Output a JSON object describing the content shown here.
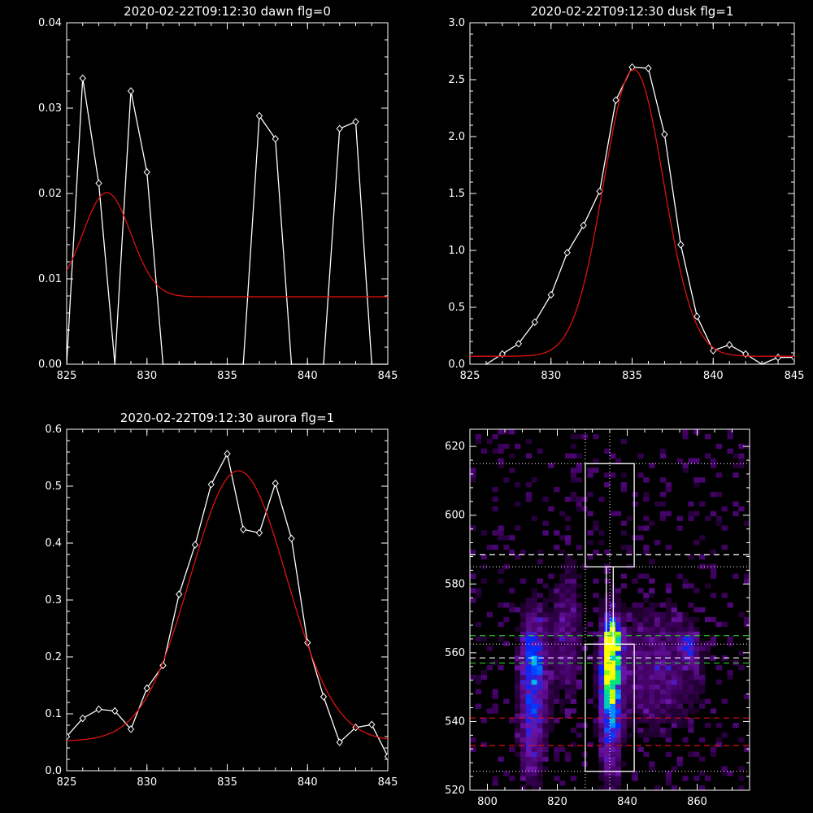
{
  "colors": {
    "background": "#000000",
    "axis": "#ffffff",
    "data": "#ffffff",
    "fit": "#dd1111"
  },
  "chart_data": [
    {
      "type": "line",
      "title": "2020-02-22T09:12:30 dawn flg=0",
      "xlim": [
        825,
        845
      ],
      "ylim": [
        0,
        0.04
      ],
      "xticks": [
        825,
        830,
        835,
        840,
        845
      ],
      "xtick_labels": [
        "825",
        "830",
        "835",
        "840",
        "845"
      ],
      "yticks": [
        0,
        0.01,
        0.02,
        0.03,
        0.04
      ],
      "ytick_labels": [
        "0.00",
        "0.01",
        "0.02",
        "0.03",
        "0.04"
      ],
      "grid": false,
      "series": [
        {
          "role": "data",
          "style": "white line with diamond markers",
          "x": [
            825,
            826,
            827,
            828,
            829,
            830,
            831,
            832,
            833,
            834,
            835,
            836,
            837,
            838,
            839,
            840,
            841,
            842,
            843,
            844,
            845
          ],
          "y": [
            0,
            0.0335,
            0.0212,
            0,
            0.032,
            0.0225,
            0,
            0,
            0,
            0,
            0,
            0,
            0.0291,
            0.0264,
            0,
            0,
            0,
            0.0276,
            0.0284,
            0,
            0
          ]
        },
        {
          "role": "fit",
          "style": "red curve",
          "model": "gaussian",
          "amplitude": 0.0122,
          "center": 827.5,
          "sigma": 1.5,
          "offset": 0.0079
        }
      ]
    },
    {
      "type": "line",
      "title": "2020-02-22T09:12:30 dusk flg=1",
      "xlim": [
        825,
        845
      ],
      "ylim": [
        0,
        3.0
      ],
      "xticks": [
        825,
        830,
        835,
        840,
        845
      ],
      "xtick_labels": [
        "825",
        "830",
        "835",
        "840",
        "845"
      ],
      "yticks": [
        0,
        0.5,
        1.0,
        1.5,
        2.0,
        2.5,
        3.0
      ],
      "ytick_labels": [
        "0.0",
        "0.5",
        "1.0",
        "1.5",
        "2.0",
        "2.5",
        "3.0"
      ],
      "grid": false,
      "series": [
        {
          "role": "data",
          "style": "white line with diamond markers",
          "x": [
            826,
            827,
            828,
            829,
            830,
            831,
            832,
            833,
            834,
            835,
            836,
            837,
            838,
            839,
            840,
            841,
            842,
            843,
            844,
            845
          ],
          "y": [
            0.0,
            0.09,
            0.18,
            0.37,
            0.61,
            0.98,
            1.22,
            1.52,
            2.32,
            2.61,
            2.6,
            2.02,
            1.05,
            0.42,
            0.12,
            0.17,
            0.09,
            0.0,
            0.06,
            0.06
          ]
        },
        {
          "role": "fit",
          "style": "red curve",
          "model": "gaussian",
          "amplitude": 2.52,
          "center": 835.1,
          "sigma": 1.85,
          "offset": 0.07
        }
      ]
    },
    {
      "type": "line",
      "title": "2020-02-22T09:12:30 aurora flg=1",
      "xlim": [
        825,
        845
      ],
      "ylim": [
        0,
        0.6
      ],
      "xticks": [
        825,
        830,
        835,
        840,
        845
      ],
      "xtick_labels": [
        "825",
        "830",
        "835",
        "840",
        "845"
      ],
      "yticks": [
        0,
        0.1,
        0.2,
        0.3,
        0.4,
        0.5,
        0.6
      ],
      "ytick_labels": [
        "0.0",
        "0.1",
        "0.2",
        "0.3",
        "0.4",
        "0.5",
        "0.6"
      ],
      "grid": false,
      "series": [
        {
          "role": "data",
          "style": "white line with diamond markers",
          "x": [
            825,
            826,
            827,
            828,
            829,
            830,
            831,
            832,
            833,
            834,
            835,
            836,
            837,
            838,
            839,
            840,
            841,
            842,
            843,
            844,
            845
          ],
          "y": [
            0.06,
            0.092,
            0.108,
            0.105,
            0.073,
            0.145,
            0.185,
            0.31,
            0.397,
            0.503,
            0.557,
            0.424,
            0.418,
            0.505,
            0.408,
            0.225,
            0.13,
            0.05,
            0.076,
            0.081,
            0.025
          ]
        },
        {
          "role": "fit",
          "style": "red curve",
          "model": "gaussian",
          "amplitude": 0.475,
          "center": 835.7,
          "sigma": 3.0,
          "offset": 0.052
        }
      ]
    },
    {
      "type": "heatmap",
      "title": "",
      "xlim": [
        795,
        875
      ],
      "ylim": [
        520,
        625
      ],
      "xticks": [
        800,
        820,
        840,
        860
      ],
      "xtick_labels": [
        "800",
        "820",
        "840",
        "860"
      ],
      "yticks": [
        520,
        540,
        560,
        580,
        600,
        620
      ],
      "ytick_labels": [
        "520",
        "540",
        "560",
        "580",
        "600",
        "620"
      ],
      "colormap": "black-purple-blue-cyan-green-yellow",
      "blobs": [
        {
          "x": 834.5,
          "y": 556,
          "sx": 1.8,
          "sy": 9,
          "peak": 0.9
        },
        {
          "x": 835.5,
          "y": 563,
          "sx": 1.5,
          "sy": 3,
          "peak": 0.95
        },
        {
          "x": 834.5,
          "y": 540,
          "sx": 2,
          "sy": 12,
          "peak": 0.45
        },
        {
          "x": 812.5,
          "y": 555,
          "sx": 2.5,
          "sy": 10,
          "peak": 0.55
        },
        {
          "x": 812,
          "y": 535,
          "sx": 2.5,
          "sy": 9,
          "peak": 0.3
        },
        {
          "x": 848,
          "y": 555,
          "sx": 8,
          "sy": 12,
          "peak": 0.22
        },
        {
          "x": 857,
          "y": 561,
          "sx": 1.5,
          "sy": 3,
          "peak": 0.35
        },
        {
          "x": 822,
          "y": 565,
          "sx": 3,
          "sy": 14,
          "peak": 0.2
        }
      ],
      "overlays": {
        "boxes": [
          {
            "x0": 828,
            "x1": 842,
            "y0": 585,
            "y1": 615
          },
          {
            "x0": 834,
            "x1": 836,
            "y0": 562.5,
            "y1": 585
          },
          {
            "x0": 828,
            "x1": 842,
            "y0": 525.5,
            "y1": 562.5
          }
        ],
        "vlines_dotted_white": [
          828,
          835
        ],
        "hlines_dotted_white": [
          615,
          585,
          562.5,
          525.5
        ],
        "hlines_dashed_white": [
          588.5,
          558.5
        ],
        "hlines_dashed_green": [
          565,
          557
        ],
        "hlines_dashed_red": [
          541,
          533
        ]
      }
    }
  ]
}
